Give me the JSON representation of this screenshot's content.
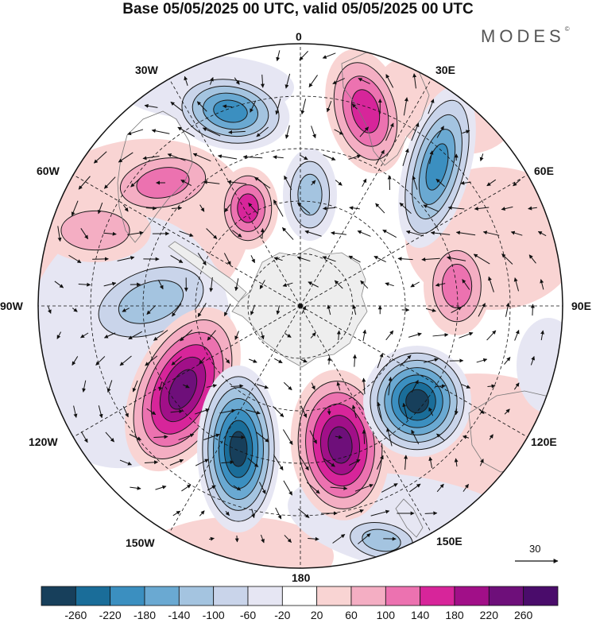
{
  "title": "Base 05/05/2025 00 UTC, valid 05/05/2025 00 UTC",
  "brand": "MODES",
  "brand_mark": "©",
  "longitude_labels": [
    {
      "id": "lon-0",
      "text": "0"
    },
    {
      "id": "lon-30e",
      "text": "30E"
    },
    {
      "id": "lon-60e",
      "text": "60E"
    },
    {
      "id": "lon-90e",
      "text": "90E"
    },
    {
      "id": "lon-120e",
      "text": "120E"
    },
    {
      "id": "lon-150e",
      "text": "150E"
    },
    {
      "id": "lon-180",
      "text": "180"
    },
    {
      "id": "lon-150w",
      "text": "150W"
    },
    {
      "id": "lon-120w",
      "text": "120W"
    },
    {
      "id": "lon-90w",
      "text": "90W"
    },
    {
      "id": "lon-60w",
      "text": "60W"
    },
    {
      "id": "lon-30w",
      "text": "30W"
    }
  ],
  "vector_reference": {
    "value": 30,
    "label": "30"
  },
  "colorbar": {
    "labels": [
      "-260",
      "-220",
      "-180",
      "-140",
      "-100",
      "-60",
      "-20",
      "20",
      "60",
      "100",
      "140",
      "180",
      "220",
      "260"
    ],
    "colors": [
      "#173f5b",
      "#1a6d99",
      "#3b8fc0",
      "#6aa9d2",
      "#a4c4e0",
      "#c9d4ea",
      "#e6e6f3",
      "#ffffff",
      "#f9d4d3",
      "#f4aec3",
      "#ec72b0",
      "#d7259a",
      "#a10f88",
      "#6e0f7a",
      "#4a0c6b"
    ]
  },
  "colors": {
    "land": "#eeeeee",
    "grid": "#111111",
    "contour": "#1a1a1a"
  },
  "blobs": [
    {
      "id": "anomaly-neg-30w",
      "color_index": 2,
      "rings": [
        6,
        5,
        4,
        3,
        2
      ]
    },
    {
      "id": "anomaly-pos-15e",
      "color_index": 11,
      "rings": [
        8,
        9,
        10,
        11
      ]
    },
    {
      "id": "anomaly-neg-40e",
      "color_index": 2,
      "rings": [
        6,
        5,
        4,
        3,
        2
      ]
    },
    {
      "id": "anomaly-pos-50w",
      "color_index": 10,
      "rings": [
        8,
        9,
        10
      ]
    },
    {
      "id": "anomaly-pos-30w-inner",
      "color_index": 11,
      "rings": [
        8,
        9,
        10,
        11
      ]
    },
    {
      "id": "anomaly-neg-10w",
      "color_index": 4,
      "rings": [
        6,
        5,
        4
      ]
    },
    {
      "id": "anomaly-pos-80e",
      "color_index": 10,
      "rings": [
        8,
        9,
        10
      ]
    },
    {
      "id": "anomaly-neg-90w",
      "color_index": 4,
      "rings": [
        6,
        5,
        4
      ]
    },
    {
      "id": "anomaly-pos-130w",
      "color_index": 13,
      "rings": [
        8,
        9,
        10,
        11,
        12,
        13
      ]
    },
    {
      "id": "anomaly-neg-155w",
      "color_index": 0,
      "rings": [
        6,
        5,
        4,
        3,
        2,
        1,
        0
      ]
    },
    {
      "id": "anomaly-pos-165e",
      "color_index": 13,
      "rings": [
        8,
        9,
        10,
        11,
        12,
        13
      ]
    },
    {
      "id": "anomaly-neg-130e",
      "color_index": 0,
      "rings": [
        6,
        5,
        4,
        3,
        2,
        1,
        0
      ]
    },
    {
      "id": "anomaly-neg-150e-edge",
      "color_index": 4,
      "rings": [
        6,
        5,
        4
      ]
    },
    {
      "id": "anomaly-pos-60w-edge",
      "color_index": 9,
      "rings": [
        8,
        9
      ]
    }
  ]
}
